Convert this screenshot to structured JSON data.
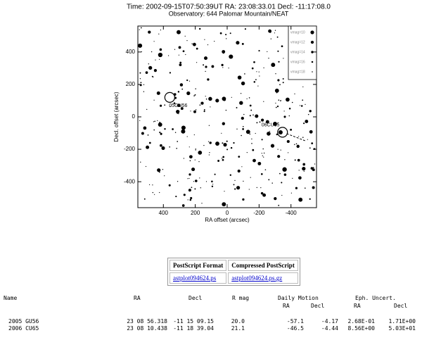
{
  "plot": {
    "title": "Time: 2002-09-15T07:50:39UT   RA: 23:08:33.01   Decl: -11:17:08.0",
    "subtitle": "Observatory: 644 Palomar Mountain/NEAT",
    "xlabel": "RA offset (arcsec)",
    "ylabel": "Decl. offset (arcsec)",
    "xlim": [
      560,
      -560
    ],
    "ylim": [
      -560,
      560
    ],
    "xticks": [
      400,
      200,
      0,
      -200,
      -400
    ],
    "yticks": [
      400,
      200,
      0,
      -200,
      -400
    ],
    "legend": [
      "vmag=10",
      "vmag=12",
      "vmag=14",
      "vmag=16",
      "vmag=18"
    ],
    "objects": [
      {
        "label": "05GU56",
        "x": 360,
        "y": 120
      },
      {
        "label": "06CU65",
        "x": -347,
        "y": -95
      }
    ]
  },
  "links": {
    "headers": [
      "PostScript Format",
      "Compressed PostScript"
    ],
    "files": [
      "astplot094624.ps",
      "astplot094624.ps.gz"
    ]
  },
  "table": {
    "headers": [
      "Name",
      "RA",
      "Decl",
      "R mag",
      "Daily Motion",
      "Eph. Uncert."
    ],
    "subheaders": [
      "RA",
      "Decl",
      "RA",
      "Decl"
    ],
    "rows": [
      [
        "2005 GU56",
        "23 08 56.318",
        "-11 15 09.15",
        "20.0",
        "-57.1",
        "-4.17",
        "2.68E-01",
        "1.71E+00"
      ],
      [
        "2006 CU65",
        "23 08 10.438",
        "-11 18 39.04",
        "21.1",
        "-46.5",
        "-4.44",
        "8.56E+00",
        "5.03E+01"
      ]
    ]
  }
}
